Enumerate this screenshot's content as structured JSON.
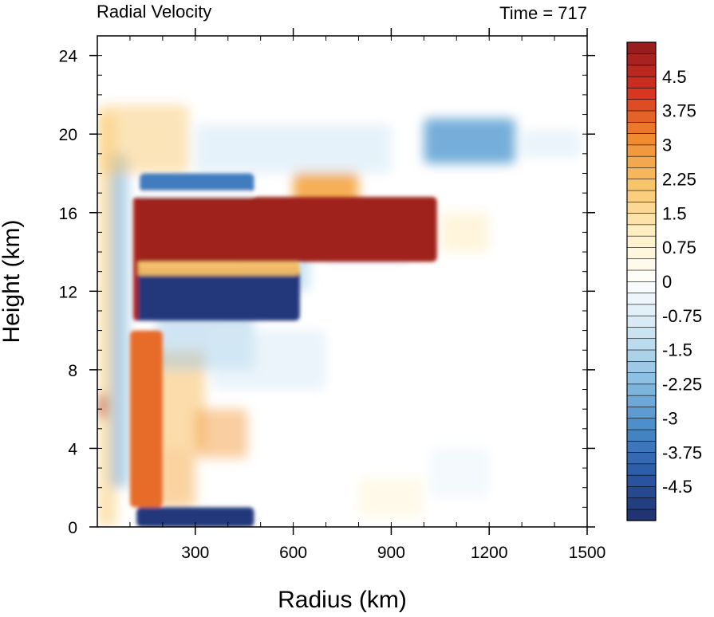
{
  "chart_data": {
    "type": "heatmap",
    "title_left": "Radial Velocity",
    "title_right": "Time = 717",
    "xlabel": "Radius (km)",
    "ylabel": "Height (km)",
    "xlim": [
      0,
      1500
    ],
    "ylim": [
      0,
      25
    ],
    "xticks": [
      300,
      600,
      900,
      1200,
      1500
    ],
    "yticks": [
      0,
      4,
      8,
      12,
      16,
      20,
      24
    ],
    "colorbar": {
      "levels_min": -5.25,
      "levels_max": 5.25,
      "step": 0.25,
      "labels": [
        "4.5",
        "3.75",
        "3",
        "2.25",
        "1.5",
        "0.75",
        "0",
        "-0.75",
        "-1.5",
        "-2.25",
        "-3",
        "-3.75",
        "-4.5"
      ],
      "label_values": [
        4.5,
        3.75,
        3,
        2.25,
        1.5,
        0.75,
        0,
        -0.75,
        -1.5,
        -2.25,
        -3,
        -3.75,
        -4.5
      ],
      "colormap": "BlueWhiteOrangeRed",
      "color_stops": [
        "#1f2e6b",
        "#2b5aa8",
        "#4b8ec9",
        "#8fc1e3",
        "#cfe6f3",
        "#ffffff",
        "#fff1c6",
        "#f8c56b",
        "#f08a2e",
        "#d63020",
        "#8e1b1e"
      ]
    },
    "features": [
      {
        "sign": "positive",
        "value": 5,
        "r_range": [
          110,
          1040
        ],
        "z_range": [
          13.5,
          16.8
        ]
      },
      {
        "sign": "negative",
        "value": -5,
        "r_range": [
          110,
          620
        ],
        "z_range": [
          10.5,
          13.2
        ]
      },
      {
        "sign": "negative",
        "value": -3.5,
        "r_range": [
          130,
          480
        ],
        "z_range": [
          17.0,
          18.0
        ]
      },
      {
        "sign": "positive",
        "value": 2.5,
        "r_range": [
          600,
          800
        ],
        "z_range": [
          16.0,
          18.0
        ]
      },
      {
        "sign": "negative",
        "value": -2.5,
        "r_range": [
          1000,
          1280
        ],
        "z_range": [
          18.5,
          20.8
        ]
      },
      {
        "sign": "negative",
        "value": -5,
        "r_range": [
          120,
          480
        ],
        "z_range": [
          0,
          1.0
        ]
      },
      {
        "sign": "positive",
        "value": 3.5,
        "r_range": [
          100,
          200
        ],
        "z_range": [
          1,
          10
        ]
      }
    ]
  }
}
